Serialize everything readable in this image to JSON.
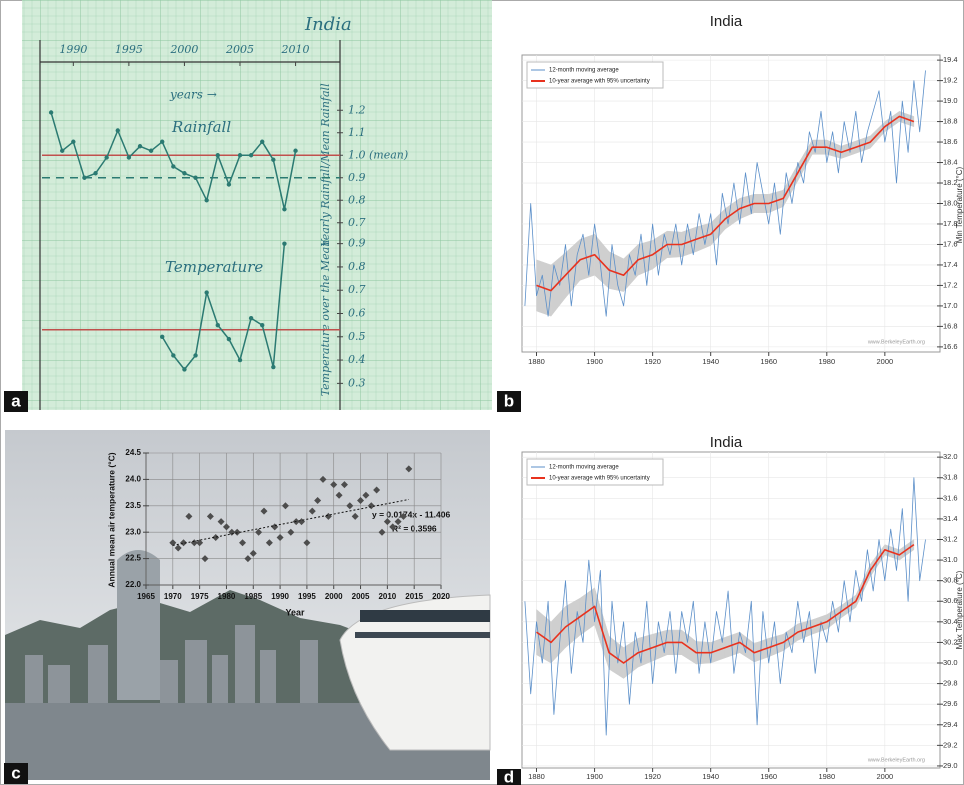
{
  "chart_data": [
    {
      "panel_label": "a",
      "type": "line",
      "title": "India",
      "x_label": "years →",
      "y_label": "Yearly Rainfall/Mean Rainfall",
      "y2_label": "Temperature over the Mean",
      "xlim": [
        1987,
        2014
      ],
      "xticks": [
        1990,
        1995,
        2000,
        2005,
        2010
      ],
      "ylim": [
        0.65,
        1.25
      ],
      "yticks": [
        1.2,
        1.1,
        {
          "value": 1.0,
          "label": "1.0 (mean)"
        },
        0.9,
        0.8,
        0.7
      ],
      "y2lim": [
        0.25,
        0.95
      ],
      "y2ticks": [
        0.9,
        0.8,
        0.7,
        0.6,
        0.5,
        0.4,
        0.3
      ],
      "series": [
        {
          "name": "Rainfall",
          "color": "#2b7a72",
          "x": [
            1988,
            1989,
            1990,
            1991,
            1992,
            1993,
            1994,
            1995,
            1996,
            1997,
            1998,
            1999,
            2000,
            2001,
            2002,
            2003,
            2004,
            2005,
            2006,
            2007,
            2008,
            2009,
            2010
          ],
          "values": [
            1.19,
            1.02,
            1.06,
            0.9,
            0.92,
            0.99,
            1.11,
            0.99,
            1.04,
            1.02,
            1.06,
            0.95,
            0.92,
            0.9,
            0.8,
            1.0,
            0.87,
            1.0,
            1.0,
            1.06,
            0.98,
            0.76,
            1.02
          ]
        },
        {
          "name": "Temperature",
          "color": "#2b7a72",
          "axis": "y2",
          "x": [
            1998,
            1999,
            2000,
            2001,
            2002,
            2003,
            2004,
            2005,
            2006,
            2007,
            2008,
            2009
          ],
          "values": [
            0.5,
            0.42,
            0.36,
            0.42,
            0.69,
            0.55,
            0.49,
            0.4,
            0.58,
            0.55,
            0.37,
            0.9
          ]
        }
      ],
      "reference_lines": [
        {
          "value": 1.0,
          "color": "#c0504d"
        },
        {
          "value": 0.9,
          "color": "#2b7a72",
          "dashed": true
        },
        {
          "value": 0.53,
          "axis": "y2",
          "color": "#c0504d"
        }
      ]
    },
    {
      "panel_label": "b",
      "type": "line",
      "title": "India",
      "y_label": "Min Temperature (°C)",
      "watermark": "www.BerkeleyEarth.org",
      "xlim": [
        1875,
        2019
      ],
      "xticks": [
        1880,
        1900,
        1920,
        1940,
        1960,
        1980,
        2000
      ],
      "ylim": [
        16.55,
        19.45
      ],
      "yticks": [
        16.6,
        16.8,
        {
          "value": 17,
          "label": "17.0"
        },
        17.2,
        17.4,
        17.6,
        17.8,
        {
          "value": 18,
          "label": "18.0"
        },
        18.2,
        18.4,
        18.6,
        18.8,
        {
          "value": 19,
          "label": "19.0"
        },
        19.2,
        19.4
      ],
      "grid": true,
      "legend": "upper left",
      "series": [
        {
          "name": "12-month moving average",
          "color": "#5b8fc9",
          "x": [
            1876,
            1878,
            1880,
            1882,
            1884,
            1886,
            1888,
            1890,
            1892,
            1894,
            1896,
            1898,
            1900,
            1902,
            1904,
            1906,
            1908,
            1910,
            1912,
            1914,
            1916,
            1918,
            1920,
            1922,
            1924,
            1926,
            1928,
            1930,
            1932,
            1934,
            1936,
            1938,
            1940,
            1942,
            1944,
            1946,
            1948,
            1950,
            1952,
            1954,
            1956,
            1958,
            1960,
            1962,
            1964,
            1966,
            1968,
            1970,
            1972,
            1974,
            1976,
            1978,
            1980,
            1982,
            1984,
            1986,
            1988,
            1990,
            1992,
            1994,
            1996,
            1998,
            2000,
            2002,
            2004,
            2006,
            2008,
            2010,
            2012,
            2014
          ],
          "values": [
            17.0,
            18.0,
            17.1,
            17.3,
            16.9,
            17.4,
            17.2,
            17.6,
            17.0,
            17.5,
            17.7,
            17.3,
            17.8,
            17.4,
            16.9,
            17.6,
            17.2,
            17.0,
            17.5,
            17.3,
            17.7,
            17.2,
            17.8,
            17.3,
            17.7,
            17.5,
            17.8,
            17.4,
            17.8,
            17.5,
            17.9,
            17.6,
            17.9,
            17.4,
            18.1,
            17.8,
            18.2,
            17.8,
            18.3,
            17.9,
            18.4,
            18.1,
            17.8,
            18.2,
            17.7,
            18.3,
            18.0,
            18.4,
            18.2,
            18.7,
            18.5,
            18.9,
            18.4,
            18.7,
            18.3,
            18.8,
            18.5,
            18.9,
            18.4,
            18.7,
            18.9,
            19.1,
            18.6,
            18.9,
            18.2,
            19.0,
            18.5,
            19.2,
            18.7,
            19.3
          ]
        },
        {
          "name": "10-year average with 95% uncertainty",
          "color": "#e8321e",
          "x": [
            1880,
            1885,
            1890,
            1895,
            1900,
            1905,
            1910,
            1915,
            1920,
            1925,
            1930,
            1935,
            1940,
            1945,
            1950,
            1955,
            1960,
            1965,
            1970,
            1975,
            1980,
            1985,
            1990,
            1995,
            2000,
            2005,
            2010
          ],
          "values": [
            17.2,
            17.15,
            17.3,
            17.45,
            17.5,
            17.35,
            17.3,
            17.45,
            17.5,
            17.6,
            17.6,
            17.65,
            17.7,
            17.85,
            17.95,
            18.0,
            18.0,
            18.05,
            18.3,
            18.55,
            18.55,
            18.5,
            18.55,
            18.6,
            18.75,
            18.85,
            18.8
          ],
          "uncertainty": [
            0.25,
            0.25,
            0.22,
            0.2,
            0.2,
            0.18,
            0.16,
            0.15,
            0.14,
            0.13,
            0.12,
            0.12,
            0.11,
            0.1,
            0.1,
            0.09,
            0.09,
            0.08,
            0.08,
            0.07,
            0.07,
            0.06,
            0.06,
            0.06,
            0.05,
            0.05,
            0.05
          ]
        }
      ]
    },
    {
      "panel_label": "c",
      "type": "scatter",
      "x_label": "Year",
      "y_label": "Annual mean air temperature (°C)",
      "annotations": [
        "y = 0.0174x - 11.406",
        "R² = 0.3596"
      ],
      "xlim": [
        1965,
        2020
      ],
      "xticks": [
        1965,
        1970,
        1975,
        1980,
        1985,
        1990,
        1995,
        2000,
        2005,
        2010,
        2015,
        2020
      ],
      "ylim": [
        22,
        24.5
      ],
      "yticks": [
        {
          "value": 22,
          "label": "22.0"
        },
        22.5,
        {
          "value": 23,
          "label": "23.0"
        },
        23.5,
        {
          "value": 24,
          "label": "24.0"
        },
        24.5
      ],
      "grid": true,
      "color": "#4d4d4d",
      "x": [
        1970,
        1971,
        1972,
        1973,
        1974,
        1975,
        1976,
        1977,
        1978,
        1979,
        1980,
        1981,
        1982,
        1983,
        1984,
        1985,
        1986,
        1987,
        1988,
        1989,
        1990,
        1991,
        1992,
        1993,
        1994,
        1995,
        1996,
        1997,
        1998,
        1999,
        2000,
        2001,
        2002,
        2003,
        2004,
        2005,
        2006,
        2007,
        2008,
        2009,
        2010,
        2011,
        2012,
        2013,
        2014
      ],
      "values": [
        22.8,
        22.7,
        22.8,
        23.3,
        22.8,
        22.8,
        22.5,
        23.3,
        22.9,
        23.2,
        23.1,
        23.0,
        23.0,
        22.8,
        22.5,
        22.6,
        23.0,
        23.4,
        22.8,
        23.1,
        22.9,
        23.5,
        23.0,
        23.2,
        23.2,
        22.8,
        23.4,
        23.6,
        24.0,
        23.3,
        23.9,
        23.7,
        23.9,
        23.5,
        23.3,
        23.6,
        23.7,
        23.5,
        23.8,
        23.0,
        23.2,
        23.1,
        23.2,
        23.3,
        24.2
      ],
      "trend_line": {
        "x": [
          1970,
          2014
        ],
        "values": [
          22.75,
          23.62
        ],
        "color": "#111111"
      }
    },
    {
      "panel_label": "d",
      "type": "line",
      "title": "India",
      "y_label": "Max Temperature (°C)",
      "watermark": "www.BerkeleyEarth.org",
      "xlim": [
        1875,
        2019
      ],
      "xticks": [
        1880,
        1900,
        1920,
        1940,
        1960,
        1980,
        2000
      ],
      "ylim": [
        28.98,
        32.05
      ],
      "yticks": [
        {
          "value": 29,
          "label": "29.0"
        },
        29.2,
        29.4,
        29.6,
        29.8,
        {
          "value": 30,
          "label": "30.0"
        },
        30.2,
        30.4,
        30.6,
        30.8,
        {
          "value": 31,
          "label": "31.0"
        },
        31.2,
        31.4,
        31.6,
        31.8,
        {
          "value": 32,
          "label": "32.0"
        }
      ],
      "grid": true,
      "legend": "upper left",
      "series": [
        {
          "name": "12-month moving average",
          "color": "#5b8fc9",
          "x": [
            1876,
            1878,
            1880,
            1882,
            1884,
            1886,
            1888,
            1890,
            1892,
            1894,
            1896,
            1898,
            1900,
            1902,
            1904,
            1906,
            1908,
            1910,
            1912,
            1914,
            1916,
            1918,
            1920,
            1922,
            1924,
            1926,
            1928,
            1930,
            1932,
            1934,
            1936,
            1938,
            1940,
            1942,
            1944,
            1946,
            1948,
            1950,
            1952,
            1954,
            1956,
            1958,
            1960,
            1962,
            1964,
            1966,
            1968,
            1970,
            1972,
            1974,
            1976,
            1978,
            1980,
            1982,
            1984,
            1986,
            1988,
            1990,
            1992,
            1994,
            1996,
            1998,
            2000,
            2002,
            2004,
            2006,
            2008,
            2010,
            2012,
            2014
          ],
          "values": [
            30.6,
            29.7,
            30.4,
            30.0,
            30.6,
            29.5,
            30.2,
            30.8,
            29.9,
            30.5,
            30.2,
            31.0,
            30.4,
            30.9,
            29.3,
            30.6,
            30.0,
            30.4,
            29.6,
            30.3,
            30.0,
            30.6,
            29.8,
            30.4,
            30.1,
            30.5,
            29.9,
            30.5,
            30.2,
            30.6,
            29.9,
            30.4,
            30.0,
            30.5,
            30.2,
            30.7,
            29.9,
            30.3,
            30.1,
            30.6,
            29.4,
            30.5,
            30.0,
            30.4,
            29.8,
            30.3,
            30.1,
            30.6,
            30.2,
            30.5,
            29.9,
            30.4,
            30.2,
            30.6,
            30.3,
            30.8,
            30.4,
            30.9,
            30.6,
            31.1,
            30.7,
            31.2,
            30.8,
            31.3,
            30.9,
            31.5,
            30.6,
            31.8,
            30.8,
            31.2
          ]
        },
        {
          "name": "10-year average with 95% uncertainty",
          "color": "#e8321e",
          "x": [
            1880,
            1885,
            1890,
            1895,
            1900,
            1905,
            1910,
            1915,
            1920,
            1925,
            1930,
            1935,
            1940,
            1945,
            1950,
            1955,
            1960,
            1965,
            1970,
            1975,
            1980,
            1985,
            1990,
            1995,
            2000,
            2005,
            2010
          ],
          "values": [
            30.3,
            30.2,
            30.35,
            30.45,
            30.55,
            30.1,
            30.0,
            30.1,
            30.15,
            30.2,
            30.2,
            30.1,
            30.1,
            30.15,
            30.2,
            30.1,
            30.15,
            30.2,
            30.3,
            30.35,
            30.4,
            30.5,
            30.6,
            30.9,
            31.1,
            31.05,
            31.15
          ],
          "uncertainty": [
            0.22,
            0.2,
            0.2,
            0.18,
            0.18,
            0.16,
            0.15,
            0.14,
            0.13,
            0.12,
            0.12,
            0.11,
            0.1,
            0.1,
            0.1,
            0.09,
            0.09,
            0.08,
            0.08,
            0.07,
            0.07,
            0.06,
            0.06,
            0.06,
            0.05,
            0.05,
            0.05
          ]
        }
      ]
    }
  ]
}
